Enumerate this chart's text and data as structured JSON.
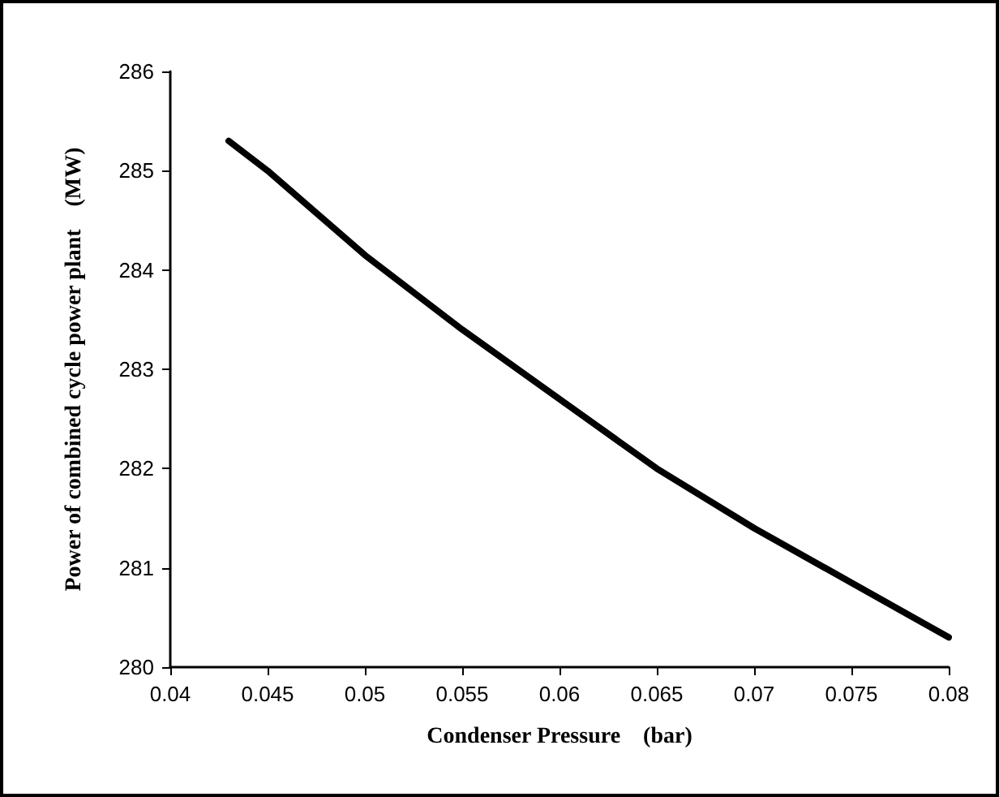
{
  "chart_data": {
    "type": "line",
    "xlabel": "Condenser Pressure    (bar)",
    "ylabel": "Power of combined cycle power plant    (MW)",
    "series": [
      {
        "color": "#000000",
        "x": [
          0.043,
          0.045,
          0.05,
          0.055,
          0.06,
          0.065,
          0.07,
          0.075,
          0.08
        ],
        "values": [
          285.3,
          285.0,
          284.15,
          283.4,
          282.7,
          282.0,
          281.4,
          280.85,
          280.3
        ]
      }
    ],
    "xlim": [
      0.04,
      0.08
    ],
    "xticks": [
      0.04,
      0.045,
      0.05,
      0.055,
      0.06,
      0.065,
      0.07,
      0.075,
      0.08
    ],
    "ylim": [
      280,
      286
    ],
    "yticks": [
      280,
      281,
      282,
      283,
      284,
      285,
      286
    ],
    "grid": false,
    "marker": "none",
    "line_style": "solid"
  }
}
